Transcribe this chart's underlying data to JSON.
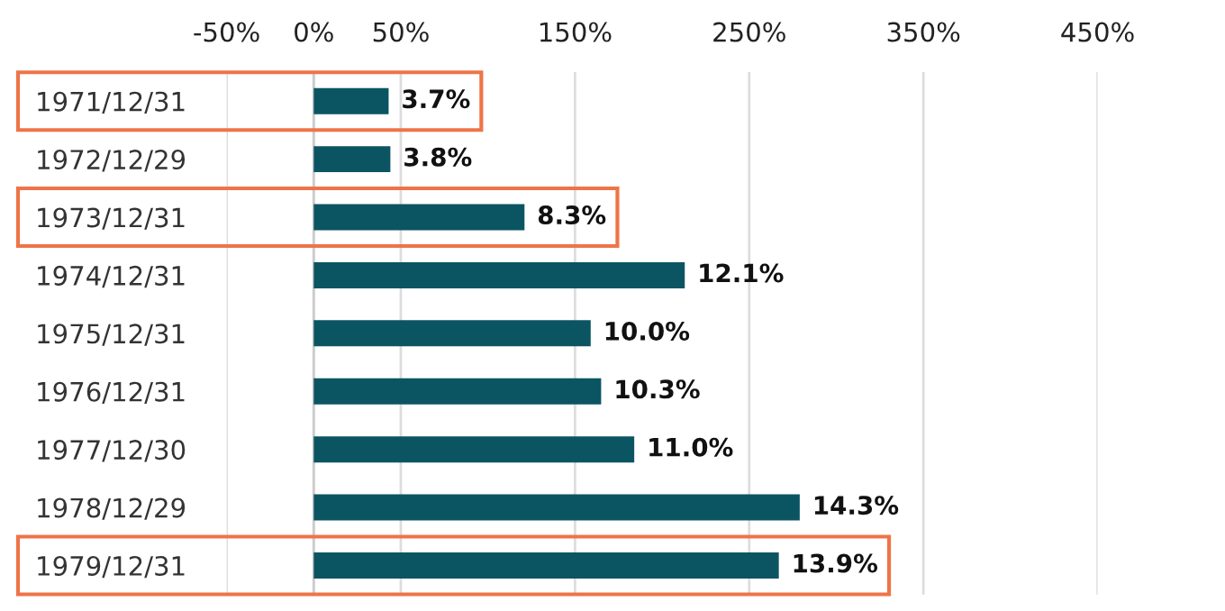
{
  "chart_data": {
    "type": "bar",
    "orientation": "horizontal",
    "categories": [
      "1971/12/31",
      "1972/12/29",
      "1973/12/31",
      "1974/12/31",
      "1975/12/31",
      "1976/12/31",
      "1977/12/30",
      "1978/12/29",
      "1979/12/31"
    ],
    "values": [
      43,
      44,
      121,
      213,
      159,
      165,
      184,
      279,
      267
    ],
    "annotations": [
      {
        "text": "3.7%",
        "x": 43,
        "y": "1971/12/31"
      },
      {
        "text": "3.8%",
        "x": 44,
        "y": "1972/12/29"
      },
      {
        "text": "8.3%",
        "x": 121,
        "y": "1973/12/31"
      },
      {
        "text": "12.1%",
        "x": 213,
        "y": "1974/12/31"
      },
      {
        "text": "10.0%",
        "x": 159,
        "y": "1975/12/31"
      },
      {
        "text": "10.3%",
        "x": 165,
        "y": "1976/12/31"
      },
      {
        "text": "11.0%",
        "x": 184,
        "y": "1977/12/30"
      },
      {
        "text": "14.3%",
        "x": 279,
        "y": "1978/12/29"
      },
      {
        "text": "13.9%",
        "x": 267,
        "y": "1979/12/31"
      }
    ],
    "color": "#0b5563",
    "xlim": [
      -50,
      450
    ],
    "xticks": [
      {
        "value": -50,
        "label": "-50%"
      },
      {
        "value": 0,
        "label": "0%"
      },
      {
        "value": 50,
        "label": "50%"
      },
      {
        "value": 150,
        "label": "150%"
      },
      {
        "value": 250,
        "label": "250%"
      },
      {
        "value": 350,
        "label": "350%"
      },
      {
        "value": 450,
        "label": "450%"
      }
    ],
    "grid": "x",
    "legend": false
  }
}
